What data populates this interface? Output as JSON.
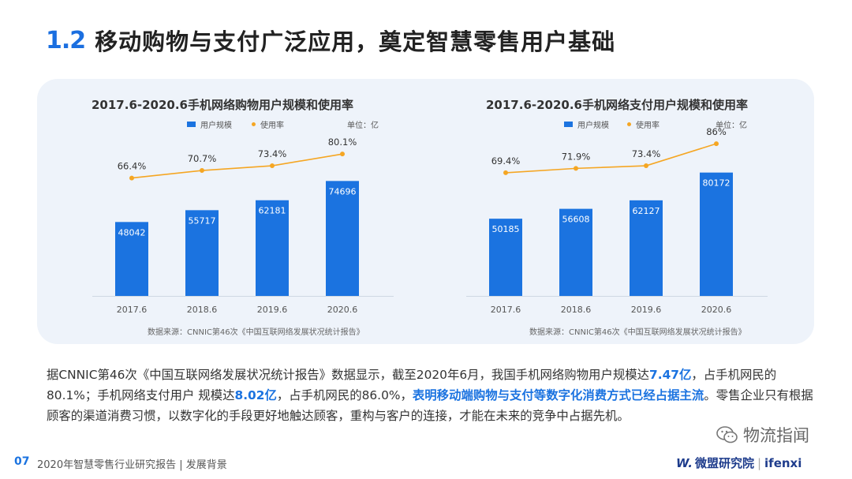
{
  "header": {
    "section_number": "1.2",
    "title": "移动购物与支付广泛应用，奠定智慧零售用户基础"
  },
  "chart_data": [
    {
      "type": "bar",
      "title": "2017.6-2020.6手机网络购物用户规模和使用率",
      "legend": {
        "bar": "用户规模",
        "line": "使用率"
      },
      "unit": "单位：亿",
      "categories": [
        "2017.6",
        "2018.6",
        "2019.6",
        "2020.6"
      ],
      "series": [
        {
          "name": "用户规模",
          "type": "bar",
          "values": [
            48042,
            55717,
            62181,
            74696
          ],
          "labels": [
            "48042",
            "55717",
            "62181",
            "74696"
          ]
        },
        {
          "name": "使用率",
          "type": "line",
          "values": [
            66.4,
            70.7,
            73.4,
            80.1
          ],
          "labels": [
            "66.4%",
            "70.7%",
            "73.4%",
            "80.1%"
          ]
        }
      ],
      "source": "数据来源：CNNIC第46次《中国互联网络发展状况统计报告》"
    },
    {
      "type": "bar",
      "title": "2017.6-2020.6手机网络支付用户规模和使用率",
      "legend": {
        "bar": "用户规模",
        "line": "使用率"
      },
      "unit": "单位：亿",
      "categories": [
        "2017.6",
        "2018.6",
        "2019.6",
        "2020.6"
      ],
      "series": [
        {
          "name": "用户规模",
          "type": "bar",
          "values": [
            50185,
            56608,
            62127,
            80172
          ],
          "labels": [
            "50185",
            "56608",
            "62127",
            "80172"
          ]
        },
        {
          "name": "使用率",
          "type": "line",
          "values": [
            69.4,
            71.9,
            73.4,
            86
          ],
          "labels": [
            "69.4%",
            "71.9%",
            "73.4%",
            "86%"
          ]
        }
      ],
      "source": "数据来源：CNNIC第46次《中国互联网络发展状况统计报告》"
    }
  ],
  "body": {
    "p1": "据CNNIC第46次《中国互联网络发展状况统计报告》数据显示，截至2020年6月，我国手机网络购物用户规模达",
    "v1": "7.47亿",
    "p2": "，占手机网民的80.1%；手机网络支付用户 规模达",
    "v2": "8.02亿",
    "p3": "，占手机网民的86.0%，",
    "highlight": "表明移动端购物与支付等数字化消费方式已经占据主流",
    "p4": "。零售企业只有根据顾客的渠道消费习惯，以数字化的手段更好地触达顾客，重构与客户的连接，才能在未来的竞争中占据先机。"
  },
  "footer": {
    "page": "07",
    "text": "2020年智慧零售行业研究报告 | 发展背景",
    "wechat_label": "物流指闻",
    "brand_logo": "W.",
    "brand_cn": "微盟研究院",
    "brand_sep": "|",
    "brand_en": "ifenxi"
  },
  "colors": {
    "accent": "#1b73e0",
    "line": "#f5a623",
    "panel": "#eef3fa"
  }
}
